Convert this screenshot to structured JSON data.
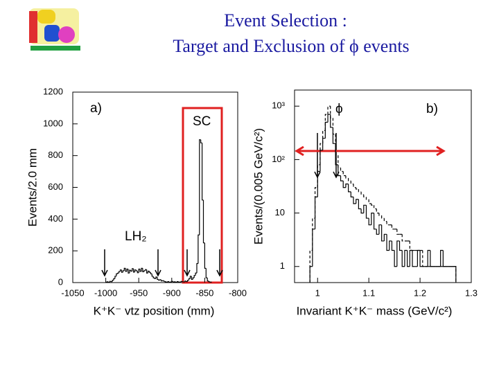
{
  "title": "Event Selection :",
  "subtitle": "Target and Exclusion of ϕ events",
  "chart_data": [
    {
      "type": "histogram",
      "xlabel": "K⁺K⁻ vtz position  (mm)",
      "ylabel": "Events/2.0 mm",
      "annotations": [
        "a)",
        "SC",
        "LH₂"
      ],
      "color": "#000000",
      "xlim": [
        -1050,
        -800
      ],
      "xticks": [
        -1050,
        -1000,
        -950,
        -900,
        -850,
        -800
      ],
      "ylim": [
        0,
        1200
      ],
      "yticks": [
        0,
        200,
        400,
        600,
        800,
        1000,
        1200
      ],
      "bins": [
        -1000,
        -998,
        -996,
        -994,
        -992,
        -990,
        -988,
        -986,
        -984,
        -982,
        -980,
        -978,
        -976,
        -974,
        -972,
        -970,
        -968,
        -966,
        -964,
        -962,
        -960,
        -958,
        -956,
        -954,
        -952,
        -950,
        -948,
        -946,
        -944,
        -942,
        -940,
        -938,
        -936,
        -934,
        -932,
        -930,
        -928,
        -926,
        -924,
        -922,
        -920,
        -918,
        -916,
        -914,
        -912,
        -910,
        -908,
        -906,
        -904,
        -902,
        -900,
        -898,
        -896,
        -894,
        -892,
        -890,
        -888,
        -886,
        -884,
        -882,
        -880,
        -878,
        -876,
        -874,
        -872,
        -870,
        -868,
        -866,
        -864,
        -862,
        -860,
        -858,
        -856,
        -854,
        -852,
        -850,
        -848,
        -846,
        -844,
        -842,
        -840
      ],
      "values": [
        3,
        5,
        2,
        8,
        6,
        15,
        25,
        40,
        55,
        60,
        70,
        80,
        65,
        75,
        90,
        70,
        85,
        60,
        78,
        72,
        88,
        66,
        80,
        74,
        62,
        85,
        70,
        90,
        68,
        75,
        82,
        60,
        72,
        65,
        55,
        40,
        30,
        25,
        35,
        20,
        15,
        18,
        10,
        12,
        8,
        5,
        3,
        6,
        2,
        4,
        8,
        3,
        5,
        2,
        6,
        4,
        3,
        7,
        5,
        4,
        10,
        6,
        15,
        25,
        40,
        20,
        30,
        45,
        60,
        120,
        300,
        900,
        880,
        520,
        250,
        90,
        30,
        10,
        5,
        3
      ],
      "log": false
    },
    {
      "type": "histogram",
      "xlabel": "Invariant K⁺K⁻ mass  (GeV/c²)",
      "ylabel": "Events/(0.005 GeV/c²)",
      "annotations": [
        "ϕ",
        "b)"
      ],
      "xlim": [
        0.955,
        1.3
      ],
      "xticks": [
        1,
        1.1,
        1.2,
        1.3
      ],
      "ylim": [
        0.5,
        2000
      ],
      "log": true,
      "yticks": [
        1,
        10,
        {
          "value": 100,
          "label": "10²"
        },
        {
          "value": 1000,
          "label": "10³"
        }
      ],
      "bins": [
        0.985,
        0.99,
        0.995,
        1,
        1.005,
        1.01,
        1.015,
        1.02,
        1.025,
        1.03,
        1.035,
        1.04,
        1.045,
        1.05,
        1.055,
        1.06,
        1.065,
        1.07,
        1.075,
        1.08,
        1.085,
        1.09,
        1.095,
        1.1,
        1.105,
        1.11,
        1.115,
        1.12,
        1.125,
        1.13,
        1.135,
        1.14,
        1.145,
        1.15,
        1.155,
        1.16,
        1.165,
        1.17,
        1.175,
        1.18,
        1.185,
        1.19,
        1.195,
        1.2,
        1.205,
        1.21,
        1.215,
        1.22,
        1.225,
        1.23,
        1.235,
        1.24,
        1.245,
        1.25,
        1.255,
        1.26,
        1.265,
        1.27
      ],
      "series": [
        {
          "color": "#000000",
          "dashed": false,
          "values": [
            1,
            5,
            20,
            60,
            150,
            250,
            500,
            700,
            400,
            200,
            80,
            50,
            40,
            30,
            35,
            25,
            20,
            15,
            18,
            12,
            10,
            14,
            8,
            6,
            10,
            5,
            4,
            6,
            3,
            4,
            2,
            3,
            2,
            1,
            3,
            2,
            1,
            2,
            1,
            2,
            1,
            1,
            2,
            1,
            1,
            1,
            2,
            1,
            1,
            1,
            1,
            2,
            1,
            1,
            1,
            1,
            1
          ]
        },
        {
          "color": "#000000",
          "dashed": true,
          "values": [
            2,
            8,
            30,
            80,
            200,
            350,
            700,
            1000,
            600,
            300,
            120,
            70,
            60,
            50,
            45,
            40,
            35,
            30,
            28,
            25,
            22,
            20,
            18,
            15,
            14,
            12,
            10,
            9,
            8,
            7,
            6,
            6,
            5,
            5,
            4,
            4,
            3,
            3,
            3,
            2,
            2,
            2,
            2,
            2,
            1,
            1,
            1,
            1,
            1,
            1,
            1,
            1,
            1,
            1,
            1,
            1,
            1
          ]
        }
      ]
    }
  ]
}
